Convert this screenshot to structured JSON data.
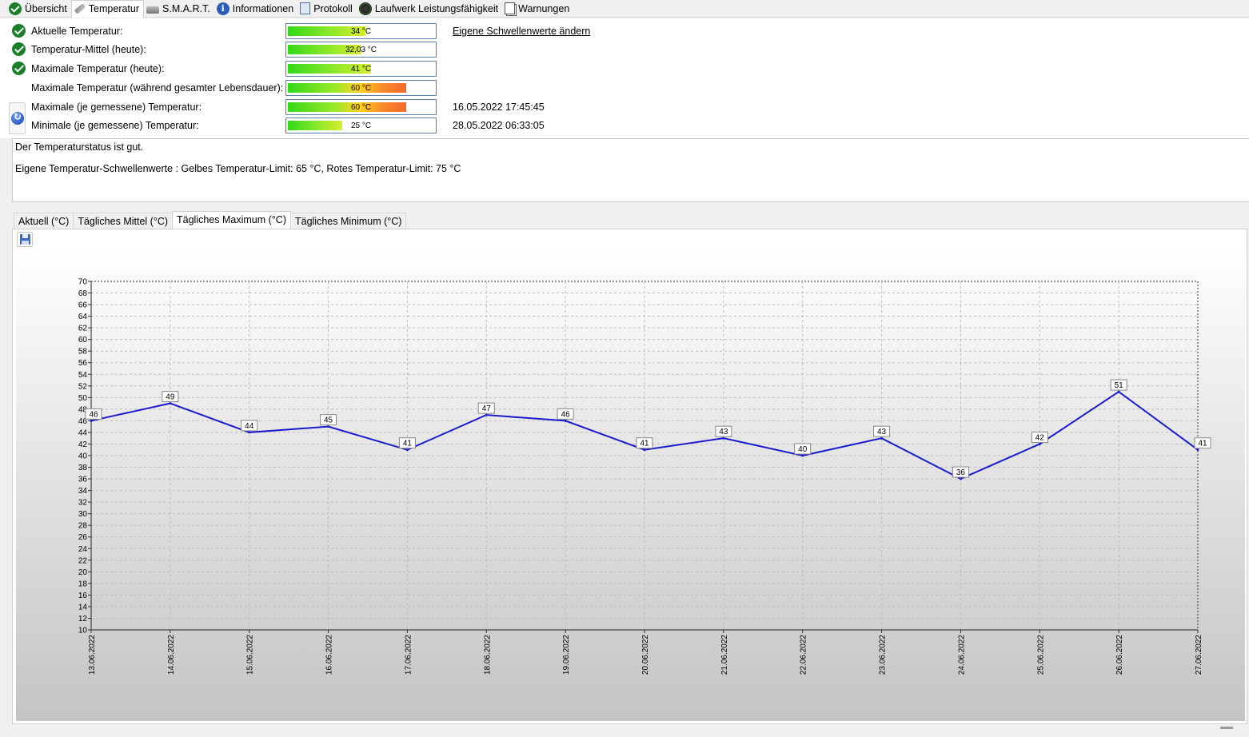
{
  "tabs": [
    {
      "label": "Übersicht",
      "icon": "check-circle-icon"
    },
    {
      "label": "Temperatur",
      "icon": "thermometer-icon"
    },
    {
      "label": "S.M.A.R.T.",
      "icon": "hard-disk-icon"
    },
    {
      "label": "Informationen",
      "icon": "info-icon"
    },
    {
      "label": "Protokoll",
      "icon": "log-document-icon"
    },
    {
      "label": "Laufwerk Leistungsfähigkeit",
      "icon": "gauge-icon"
    },
    {
      "label": "Warnungen",
      "icon": "warnings-pages-icon"
    }
  ],
  "active_tab": "Temperatur",
  "temps": [
    {
      "label": "Aktuelle Temperatur:",
      "value": "34 °C",
      "level": 0.53,
      "hot": false,
      "ok": true,
      "side": "Eigene Schwellenwerte ändern"
    },
    {
      "label": "Temperatur-Mittel (heute):",
      "value": "32,03 °C",
      "level": 0.5,
      "hot": false,
      "ok": true,
      "side": ""
    },
    {
      "label": "Maximale Temperatur (heute):",
      "value": "41 °C",
      "level": 0.57,
      "hot": false,
      "ok": true,
      "side": ""
    },
    {
      "label": "Maximale Temperatur (während gesamter Lebensdauer):",
      "value": "60 °C",
      "level": 0.81,
      "hot": true,
      "ok": false,
      "side": ""
    },
    {
      "label": "Maximale (je gemessene) Temperatur:",
      "value": "60 °C",
      "level": 0.81,
      "hot": true,
      "ok": false,
      "side": "16.05.2022 17:45:45"
    },
    {
      "label": "Minimale (je gemessene) Temperatur:",
      "value": "25 °C",
      "level": 0.37,
      "hot": false,
      "ok": false,
      "side": "28.05.2022 06:33:05"
    }
  ],
  "status": {
    "line1": "Der Temperaturstatus ist gut.",
    "line2": "Eigene Temperatur-Schwellenwerte : Gelbes Temperatur-Limit: 65 °C, Rotes Temperatur-Limit: 75 °C"
  },
  "chart_tabs": [
    "Aktuell (°C)",
    "Tägliches Mittel (°C)",
    "Tägliches Maximum (°C)",
    "Tägliches Minimum (°C)"
  ],
  "active_chart_tab": "Tägliches Maximum (°C)",
  "chart_data": {
    "type": "line",
    "title": "",
    "xlabel": "",
    "ylabel": "",
    "categories": [
      "13.06.2022",
      "14.06.2022",
      "15.06.2022",
      "16.06.2022",
      "17.06.2022",
      "18.06.2022",
      "19.06.2022",
      "20.06.2022",
      "21.06.2022",
      "22.06.2022",
      "23.06.2022",
      "24.06.2022",
      "25.06.2022",
      "26.06.2022",
      "27.06.2022"
    ],
    "series": [
      {
        "values": [
          46,
          49,
          44,
          45,
          41,
          47,
          46,
          41,
          43,
          40,
          43,
          36,
          42,
          51,
          41
        ],
        "color": "#1a1ad0"
      }
    ],
    "ylim": [
      10,
      70
    ],
    "ytick_step": 2,
    "grid": true,
    "data_labels": true
  }
}
